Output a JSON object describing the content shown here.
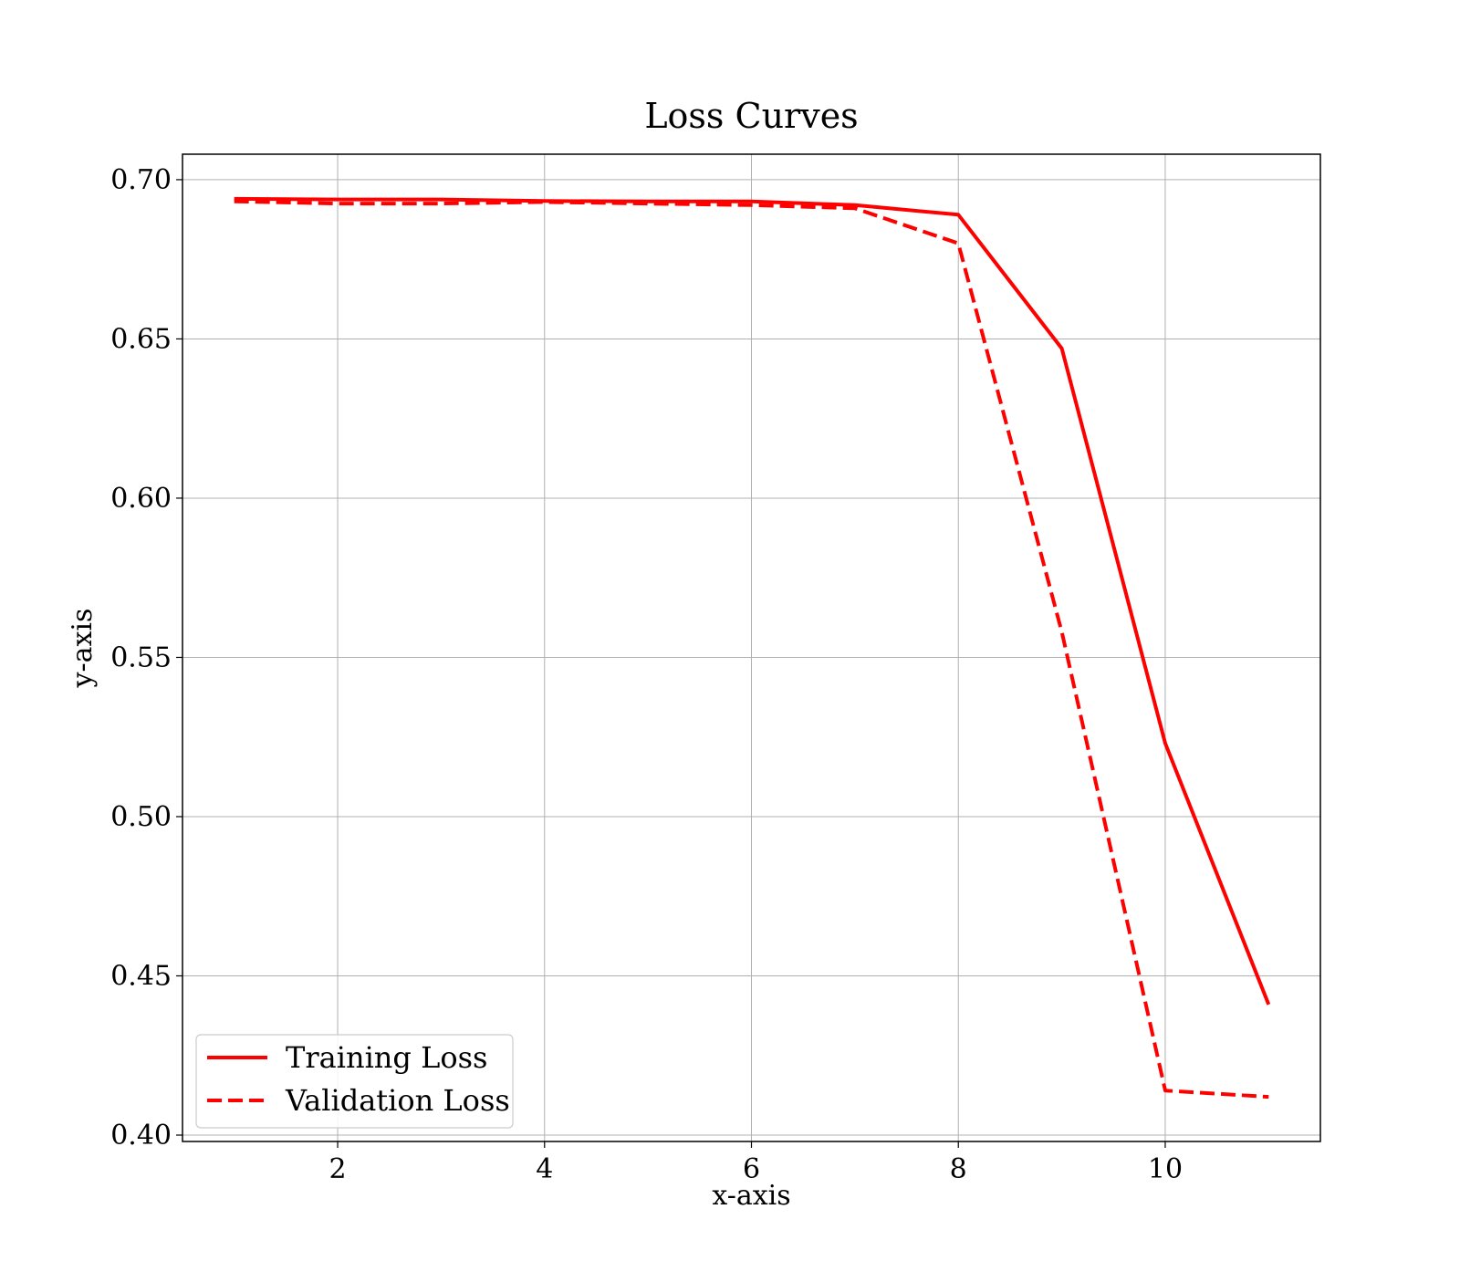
{
  "chart_data": {
    "type": "line",
    "title": "Loss Curves",
    "xlabel": "x-axis",
    "ylabel": "y-axis",
    "xlim": [
      0.5,
      11.5
    ],
    "ylim": [
      0.398,
      0.708
    ],
    "xticks": [
      2,
      4,
      6,
      8,
      10
    ],
    "xtick_labels": [
      "2",
      "4",
      "6",
      "8",
      "10"
    ],
    "yticks": [
      0.4,
      0.45,
      0.5,
      0.55,
      0.6,
      0.65,
      0.7
    ],
    "ytick_labels": [
      "0.40",
      "0.45",
      "0.50",
      "0.55",
      "0.60",
      "0.65",
      "0.70"
    ],
    "grid": true,
    "legend_position": "lower-left",
    "x": [
      1,
      2,
      3,
      4,
      5,
      6,
      7,
      8,
      9,
      10,
      11
    ],
    "series": [
      {
        "name": "Training Loss",
        "style": "solid",
        "color": "#ff0000",
        "values": [
          0.694,
          0.6938,
          0.6938,
          0.6933,
          0.6932,
          0.6932,
          0.692,
          0.689,
          0.647,
          0.523,
          0.441
        ]
      },
      {
        "name": "Validation Loss",
        "style": "dashed",
        "color": "#ff0000",
        "values": [
          0.6932,
          0.6925,
          0.6925,
          0.693,
          0.6925,
          0.692,
          0.691,
          0.68,
          0.558,
          0.414,
          0.412
        ]
      }
    ]
  }
}
